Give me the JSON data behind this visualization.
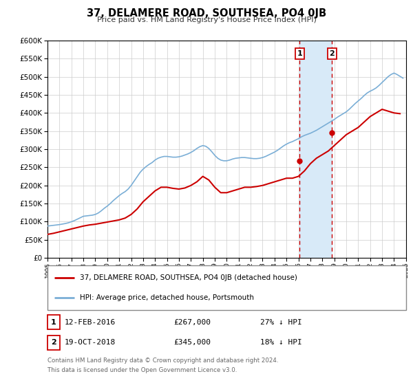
{
  "title": "37, DELAMERE ROAD, SOUTHSEA, PO4 0JB",
  "subtitle": "Price paid vs. HM Land Registry's House Price Index (HPI)",
  "legend_line1": "37, DELAMERE ROAD, SOUTHSEA, PO4 0JB (detached house)",
  "legend_line2": "HPI: Average price, detached house, Portsmouth",
  "footnote1": "Contains HM Land Registry data © Crown copyright and database right 2024.",
  "footnote2": "This data is licensed under the Open Government Licence v3.0.",
  "sale1_date": "12-FEB-2016",
  "sale1_price": "£267,000",
  "sale1_pct": "27% ↓ HPI",
  "sale1_year": 2016.11,
  "sale1_value": 267000,
  "sale2_date": "19-OCT-2018",
  "sale2_price": "£345,000",
  "sale2_pct": "18% ↓ HPI",
  "sale2_year": 2018.8,
  "sale2_value": 345000,
  "red_color": "#cc0000",
  "blue_color": "#7aaed6",
  "bg_color": "#ffffff",
  "grid_color": "#cccccc",
  "shaded_color": "#d8eaf8",
  "ylim": [
    0,
    600000
  ],
  "xlim_start": 1995,
  "xlim_end": 2025,
  "hpi_years": [
    1995.0,
    1995.25,
    1995.5,
    1995.75,
    1996.0,
    1996.25,
    1996.5,
    1996.75,
    1997.0,
    1997.25,
    1997.5,
    1997.75,
    1998.0,
    1998.25,
    1998.5,
    1998.75,
    1999.0,
    1999.25,
    1999.5,
    1999.75,
    2000.0,
    2000.25,
    2000.5,
    2000.75,
    2001.0,
    2001.25,
    2001.5,
    2001.75,
    2002.0,
    2002.25,
    2002.5,
    2002.75,
    2003.0,
    2003.25,
    2003.5,
    2003.75,
    2004.0,
    2004.25,
    2004.5,
    2004.75,
    2005.0,
    2005.25,
    2005.5,
    2005.75,
    2006.0,
    2006.25,
    2006.5,
    2006.75,
    2007.0,
    2007.25,
    2007.5,
    2007.75,
    2008.0,
    2008.25,
    2008.5,
    2008.75,
    2009.0,
    2009.25,
    2009.5,
    2009.75,
    2010.0,
    2010.25,
    2010.5,
    2010.75,
    2011.0,
    2011.25,
    2011.5,
    2011.75,
    2012.0,
    2012.25,
    2012.5,
    2012.75,
    2013.0,
    2013.25,
    2013.5,
    2013.75,
    2014.0,
    2014.25,
    2014.5,
    2014.75,
    2015.0,
    2015.25,
    2015.5,
    2015.75,
    2016.0,
    2016.25,
    2016.5,
    2016.75,
    2017.0,
    2017.25,
    2017.5,
    2017.75,
    2018.0,
    2018.25,
    2018.5,
    2018.75,
    2019.0,
    2019.25,
    2019.5,
    2019.75,
    2020.0,
    2020.25,
    2020.5,
    2020.75,
    2021.0,
    2021.25,
    2021.5,
    2021.75,
    2022.0,
    2022.25,
    2022.5,
    2022.75,
    2023.0,
    2023.25,
    2023.5,
    2023.75,
    2024.0,
    2024.25,
    2024.5,
    2024.75
  ],
  "hpi_values": [
    88000,
    89000,
    90000,
    91000,
    92000,
    93500,
    95000,
    97000,
    100000,
    103000,
    107000,
    111000,
    115000,
    116000,
    117000,
    118000,
    120000,
    124000,
    130000,
    137000,
    143000,
    150000,
    158000,
    165000,
    172000,
    178000,
    183000,
    190000,
    200000,
    212000,
    224000,
    236000,
    245000,
    252000,
    258000,
    263000,
    270000,
    275000,
    278000,
    280000,
    280000,
    279000,
    278000,
    278000,
    279000,
    281000,
    284000,
    287000,
    291000,
    296000,
    302000,
    307000,
    310000,
    308000,
    302000,
    293000,
    283000,
    275000,
    270000,
    268000,
    268000,
    270000,
    273000,
    275000,
    276000,
    277000,
    277000,
    276000,
    275000,
    274000,
    274000,
    275000,
    277000,
    280000,
    284000,
    288000,
    292000,
    297000,
    303000,
    309000,
    314000,
    318000,
    321000,
    325000,
    329000,
    334000,
    338000,
    341000,
    344000,
    348000,
    352000,
    357000,
    362000,
    367000,
    372000,
    377000,
    382000,
    388000,
    393000,
    398000,
    403000,
    410000,
    418000,
    426000,
    433000,
    440000,
    448000,
    455000,
    460000,
    464000,
    469000,
    476000,
    484000,
    492000,
    500000,
    506000,
    510000,
    506000,
    501000,
    496000
  ],
  "price_years": [
    1995.0,
    1995.5,
    1996.0,
    1996.5,
    1997.0,
    1997.5,
    1998.0,
    1998.5,
    1999.0,
    1999.5,
    2000.0,
    2000.5,
    2001.0,
    2001.5,
    2002.0,
    2002.5,
    2003.0,
    2003.5,
    2004.0,
    2004.5,
    2005.0,
    2005.5,
    2006.0,
    2006.5,
    2007.0,
    2007.5,
    2008.0,
    2008.5,
    2009.0,
    2009.5,
    2010.0,
    2010.5,
    2011.0,
    2011.5,
    2012.0,
    2012.5,
    2013.0,
    2013.5,
    2014.0,
    2014.5,
    2015.0,
    2015.5,
    2016.0,
    2016.5,
    2017.0,
    2017.5,
    2018.0,
    2018.5,
    2019.0,
    2019.5,
    2020.0,
    2020.5,
    2021.0,
    2021.5,
    2022.0,
    2022.5,
    2023.0,
    2023.5,
    2024.0,
    2024.5
  ],
  "price_values": [
    65000,
    68000,
    72000,
    76000,
    80000,
    84000,
    88000,
    91000,
    93000,
    96000,
    99000,
    102000,
    105000,
    110000,
    120000,
    135000,
    155000,
    170000,
    185000,
    195000,
    195000,
    192000,
    190000,
    193000,
    200000,
    210000,
    225000,
    215000,
    195000,
    180000,
    180000,
    185000,
    190000,
    195000,
    195000,
    197000,
    200000,
    205000,
    210000,
    215000,
    220000,
    220000,
    225000,
    240000,
    260000,
    275000,
    285000,
    295000,
    310000,
    325000,
    340000,
    350000,
    360000,
    375000,
    390000,
    400000,
    410000,
    405000,
    400000,
    398000
  ]
}
